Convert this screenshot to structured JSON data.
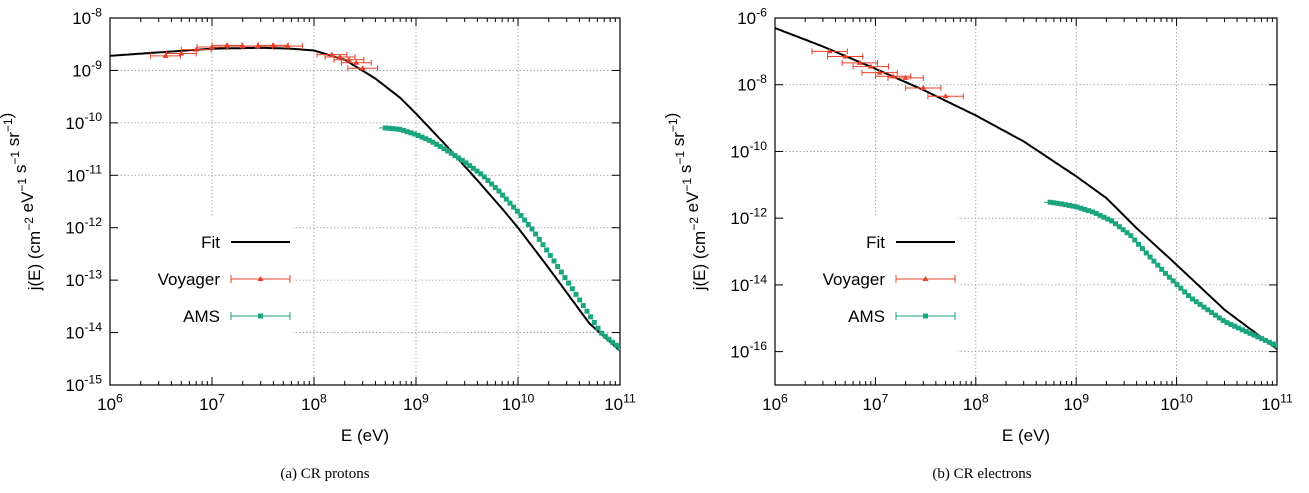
{
  "chart_data": [
    {
      "type": "scatter",
      "caption": "(a) CR protons",
      "xlabel": "E (eV)",
      "ylabel": "j(E) (cm^-2 eV^-1 s^-1 sr^-1)",
      "xscale": "log",
      "yscale": "log",
      "xlim": [
        1000000.0,
        100000000000.0
      ],
      "ylim": [
        1e-15,
        1e-08
      ],
      "xticks": [
        6,
        7,
        8,
        9,
        10,
        11
      ],
      "yticks": [
        -15,
        -14,
        -13,
        -12,
        -11,
        -10,
        -9,
        -8
      ],
      "grid": true,
      "legend_position": "bottom-left",
      "series": [
        {
          "name": "Fit",
          "kind": "line",
          "color": "#000000",
          "x": [
            1000000.0,
            10000000.0,
            30000000.0,
            60000000.0,
            100000000.0,
            200000000.0,
            400000000.0,
            700000000.0,
            1000000000.0,
            2000000000.0,
            4000000000.0,
            7000000000.0,
            10000000000.0,
            20000000000.0,
            50000000000.0,
            100000000000.0
          ],
          "y": [
            1.9e-09,
            2.6e-09,
            2.7e-09,
            2.6e-09,
            2.4e-09,
            1.6e-09,
            7e-10,
            3e-10,
            1.5e-10,
            3.6e-11,
            8e-12,
            2.3e-12,
            1e-12,
            1.7e-13,
            1.5e-14,
            4.5e-15
          ]
        },
        {
          "name": "Voyager",
          "kind": "errorbar",
          "marker": "triangle",
          "color": "#e8402a",
          "x": [
            3500000.0,
            5000000.0,
            7000000.0,
            10000000.0,
            14000000.0,
            20000000.0,
            28000000.0,
            40000000.0,
            55000000.0,
            150000000.0,
            180000000.0,
            220000000.0,
            260000000.0,
            300000000.0
          ],
          "y": [
            1.9e-09,
            2.1e-09,
            2.5e-09,
            2.8e-09,
            3e-09,
            2.9e-09,
            2.9e-09,
            3e-09,
            2.9e-09,
            2e-09,
            1.8e-09,
            1.6e-09,
            1.4e-09,
            1.1e-09
          ],
          "xerr_factor": 1.4
        },
        {
          "name": "AMS",
          "kind": "errorbar",
          "marker": "square",
          "color": "#1ba57e",
          "x_range": [
            500000000.0,
            100000000000.0
          ],
          "n_points": 65,
          "y": [
            8e-11,
            7.5e-11,
            6e-11,
            4.5e-11,
            3e-11,
            1.8e-11,
            1e-11,
            5e-12,
            2e-12,
            9e-13,
            3.3e-13,
            1e-13,
            3e-14,
            1e-14,
            5e-15
          ],
          "y_x": [
            500000000.0,
            700000000.0,
            1000000000.0,
            1400000000.0,
            2000000000.0,
            3000000000.0,
            4500000000.0,
            6500000000.0,
            10000000000.0,
            14000000000.0,
            20000000000.0,
            30000000000.0,
            45000000000.0,
            65000000000.0,
            100000000000.0
          ]
        }
      ],
      "legend": [
        "Fit",
        "Voyager",
        "AMS"
      ]
    },
    {
      "type": "scatter",
      "caption": "(b) CR electrons",
      "xlabel": "E (eV)",
      "ylabel": "j(E) (cm^-2 eV^-1 s^-1 sr^-1)",
      "xscale": "log",
      "yscale": "log",
      "xlim": [
        1000000.0,
        100000000000.0
      ],
      "ylim": [
        1e-17,
        1e-06
      ],
      "xticks": [
        6,
        7,
        8,
        9,
        10,
        11
      ],
      "yticks": [
        -16,
        -14,
        -12,
        -10,
        -8,
        -6
      ],
      "grid": true,
      "legend_position": "bottom-left",
      "series": [
        {
          "name": "Fit",
          "kind": "line",
          "color": "#000000",
          "x": [
            1000000.0,
            3000000.0,
            10000000.0,
            30000000.0,
            100000000.0,
            300000000.0,
            1000000000.0,
            2000000000.0,
            4000000000.0,
            10000000000.0,
            30000000000.0,
            100000000000.0
          ],
          "y": [
            5e-07,
            1.4e-07,
            3e-08,
            7e-09,
            1.2e-09,
            2e-10,
            1.8e-11,
            4e-12,
            5e-13,
            4e-14,
            1.8e-15,
            1.2e-16
          ]
        },
        {
          "name": "Voyager",
          "kind": "errorbar",
          "marker": "triangle",
          "color": "#e8402a",
          "x": [
            3500000.0,
            5000000.0,
            7000000.0,
            9000000.0,
            11000000.0,
            15000000.0,
            20000000.0,
            30000000.0,
            50000000.0
          ],
          "y": [
            1e-07,
            7e-08,
            4.5e-08,
            3.5e-08,
            2.3e-08,
            1.8e-08,
            1.6e-08,
            8e-09,
            4.5e-09
          ],
          "xerr_factor": 1.5
        },
        {
          "name": "AMS",
          "kind": "errorbar",
          "marker": "square",
          "color": "#1ba57e",
          "x_range": [
            550000000.0,
            100000000000.0
          ],
          "n_points": 60,
          "y": [
            3e-12,
            2.7e-12,
            2.2e-12,
            1.5e-12,
            8e-13,
            3e-13,
            9e-14,
            2e-14,
            4e-15,
            8e-16,
            1.5e-16
          ],
          "y_x": [
            550000000.0,
            700000000.0,
            1000000000.0,
            1500000000.0,
            2300000000.0,
            3500000000.0,
            5000000000.0,
            8000000000.0,
            14000000000.0,
            30000000000.0,
            100000000000.0
          ]
        }
      ],
      "legend": [
        "Fit",
        "Voyager",
        "AMS"
      ]
    }
  ]
}
